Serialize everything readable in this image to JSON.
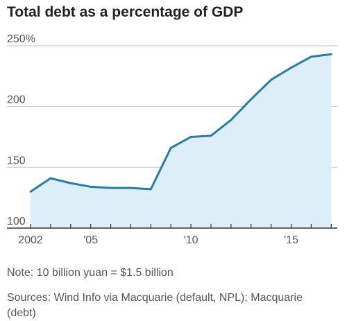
{
  "chart_data": {
    "type": "area",
    "title": "Total debt as a percentage of GDP",
    "x": [
      2002,
      2003,
      2004,
      2005,
      2006,
      2007,
      2008,
      2009,
      2010,
      2011,
      2012,
      2013,
      2014,
      2015,
      2016,
      2017
    ],
    "values": [
      130,
      141,
      137,
      134,
      133,
      133,
      132,
      166,
      175,
      176,
      189,
      206,
      222,
      232,
      241,
      243
    ],
    "xlim": [
      2002,
      2017.3
    ],
    "ylim": [
      100,
      250
    ],
    "y_ticks": [
      100,
      150,
      200,
      250
    ],
    "y_tick_labels": [
      "100",
      "150",
      "200",
      "250%"
    ],
    "x_ticks": [
      2002,
      2005,
      2010,
      2015
    ],
    "x_tick_labels": [
      "2002",
      "'05",
      "'10",
      "'15"
    ],
    "xlabel": "",
    "ylabel": "",
    "grid": true,
    "colors": {
      "line": "#2a7ca3",
      "fill": "#ddeef8",
      "grid": "#cccccc",
      "axis": "#333333"
    }
  },
  "notes": {
    "note": "Note: 10 billion yuan = $1.5 billion",
    "sources": "Sources: Wind Info via Macquarie (default, NPL); Macquarie (debt)"
  }
}
